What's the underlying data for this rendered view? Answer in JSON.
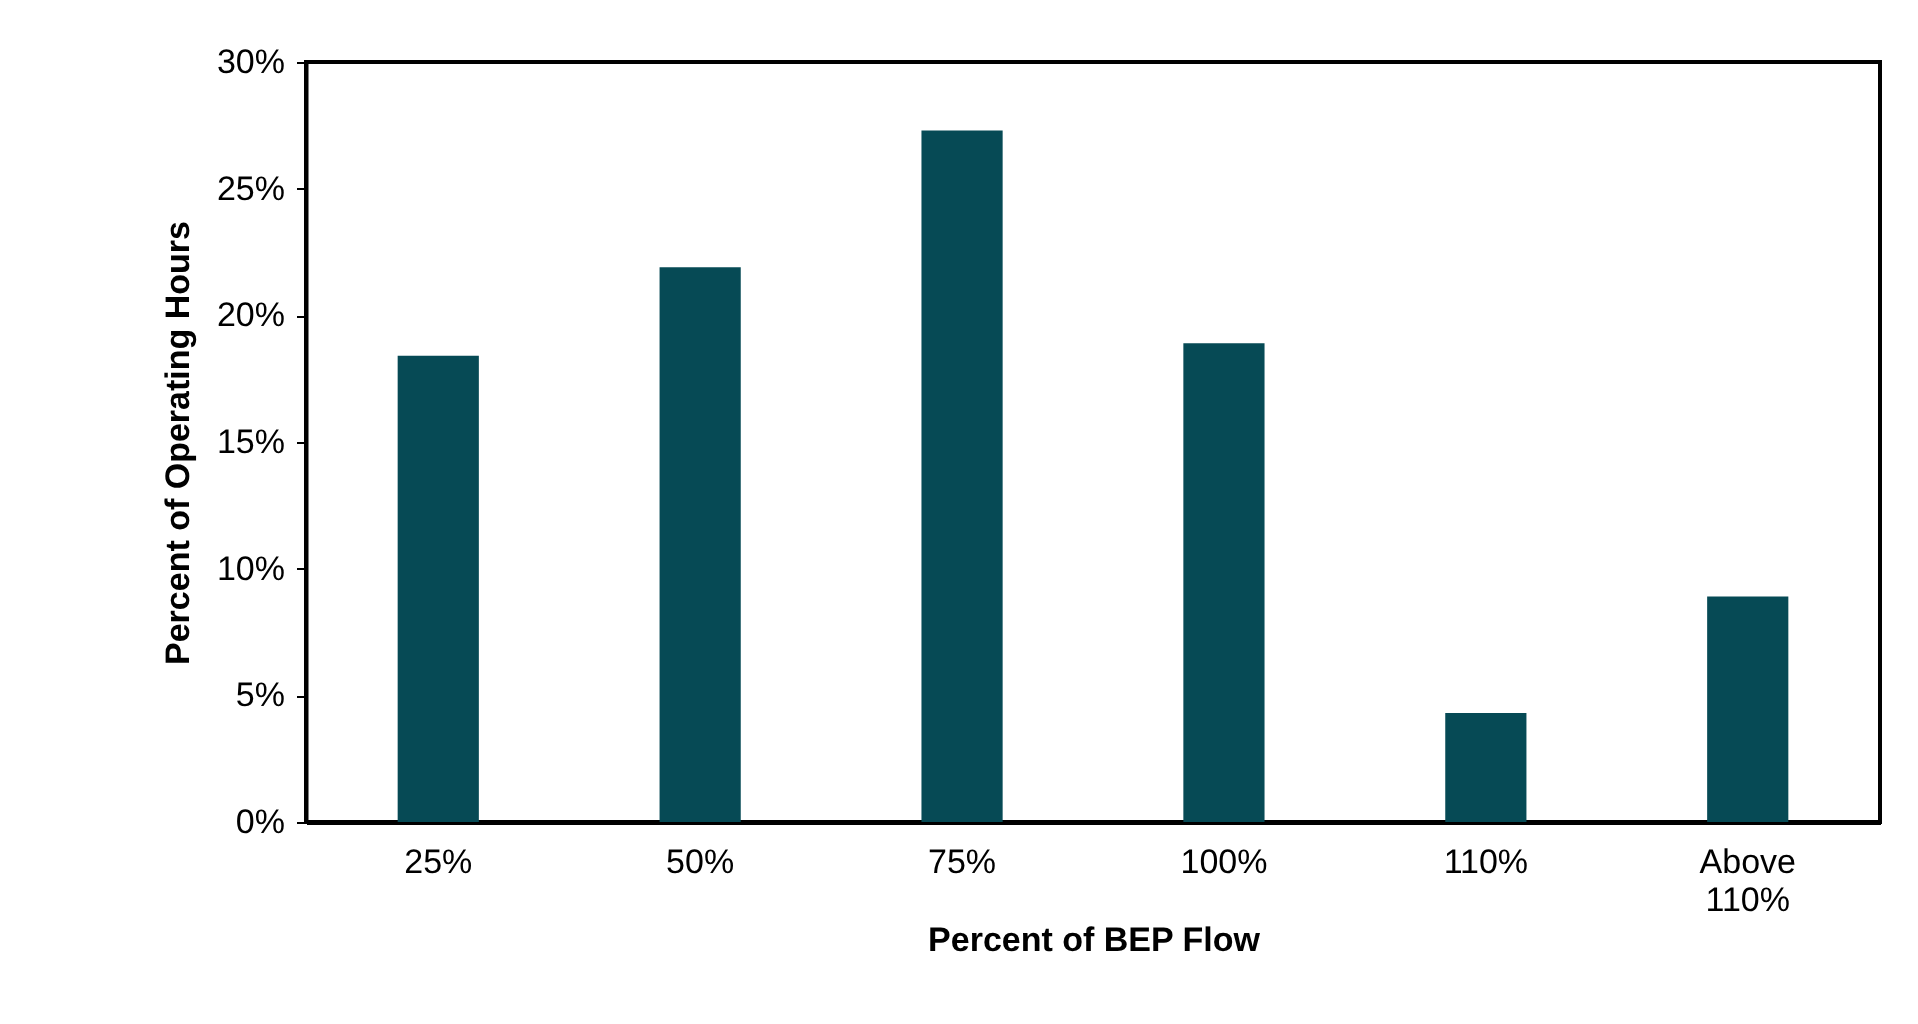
{
  "chart_data": {
    "type": "bar",
    "xlabel": "Percent of BEP Flow",
    "ylabel": "Percent of Operating Hours",
    "categories": [
      "25%",
      "50%",
      "75%",
      "100%",
      "110%",
      "Above\n110%"
    ],
    "values": [
      18.4,
      21.9,
      27.3,
      18.9,
      4.3,
      8.9
    ],
    "color": "#064a55",
    "ylim": [
      0,
      30
    ],
    "yticks": [
      {
        "value": 0,
        "label": "0%"
      },
      {
        "value": 5,
        "label": "5%"
      },
      {
        "value": 10,
        "label": "10%"
      },
      {
        "value": 15,
        "label": "15%"
      },
      {
        "value": 20,
        "label": "20%"
      },
      {
        "value": 25,
        "label": "25%"
      },
      {
        "value": 30,
        "label": "30%"
      }
    ],
    "grid": false
  }
}
